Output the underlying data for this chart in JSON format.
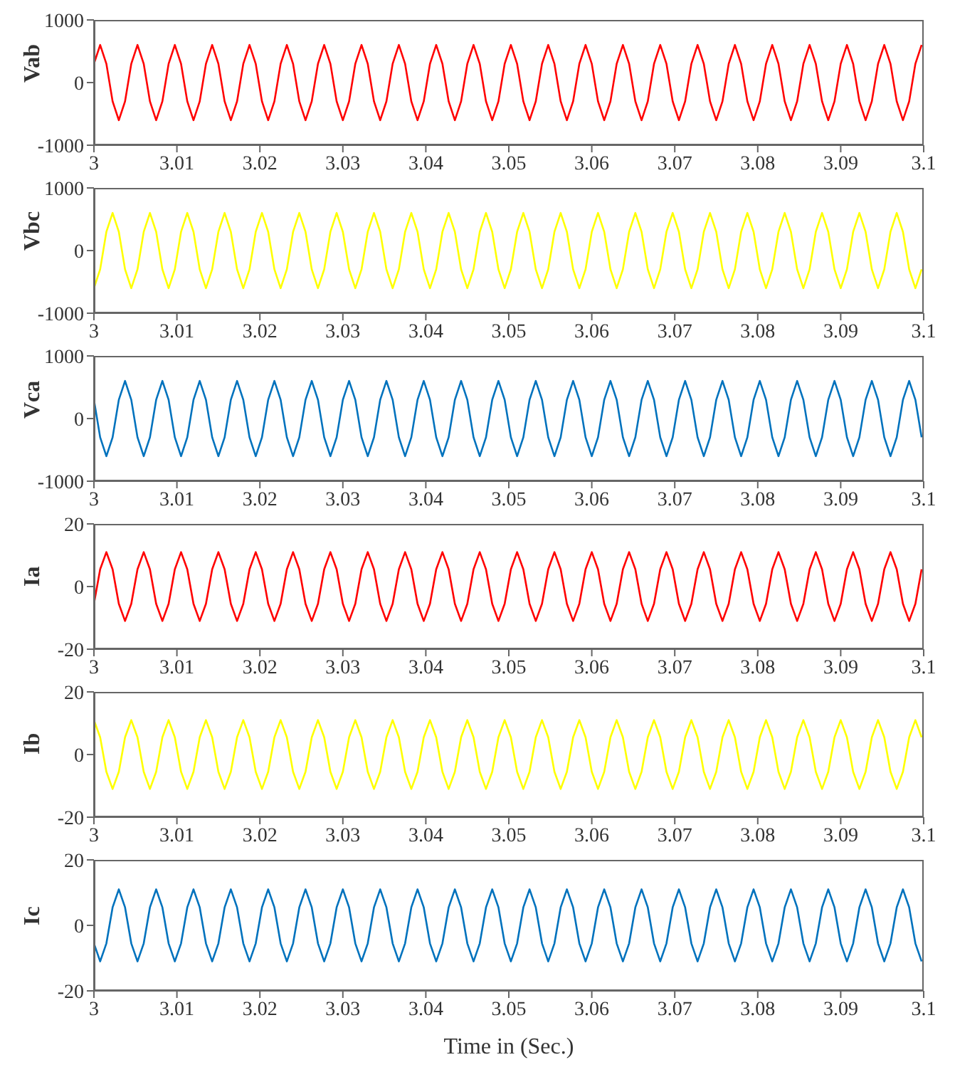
{
  "chart_data": [
    {
      "type": "line",
      "ylabel": "Vab",
      "xlim": [
        3,
        3.1
      ],
      "xticks": [
        3,
        3.01,
        3.02,
        3.03,
        3.04,
        3.05,
        3.06,
        3.07,
        3.08,
        3.09,
        3.1
      ],
      "ylim": [
        -1000,
        1000
      ],
      "yticks": [
        -1000,
        0,
        1000
      ],
      "x": [
        3,
        3.00075,
        3.0015,
        3.00225,
        3.003,
        3.00375,
        3.0045,
        3.00525,
        3.006,
        3.00675,
        3.0075,
        3.00825,
        3.009,
        3.00975,
        3.0105,
        3.01125,
        3.012,
        3.01275,
        3.0135,
        3.01425,
        3.015,
        3.01575,
        3.0165,
        3.01725,
        3.018,
        3.01875,
        3.0195,
        3.02025,
        3.021,
        3.02175,
        3.0225,
        3.02325,
        3.024,
        3.02475,
        3.0255,
        3.02625,
        3.027,
        3.02775,
        3.0285,
        3.02925,
        3.03,
        3.03075,
        3.0315,
        3.03225,
        3.033,
        3.03375,
        3.0345,
        3.03525,
        3.036,
        3.03675,
        3.0375,
        3.03825,
        3.039,
        3.03975,
        3.0405,
        3.04125,
        3.042,
        3.04275,
        3.0435,
        3.04425,
        3.045,
        3.04575,
        3.0465,
        3.04725,
        3.048,
        3.04875,
        3.0495,
        3.05025,
        3.051,
        3.05175,
        3.0525,
        3.05325,
        3.054,
        3.05475,
        3.0555,
        3.05625,
        3.057,
        3.05775,
        3.0585,
        3.05925,
        3.06,
        3.06075,
        3.0615,
        3.06225,
        3.063,
        3.06375,
        3.0645,
        3.06525,
        3.066,
        3.06675,
        3.0675,
        3.06825,
        3.069,
        3.06975,
        3.0705,
        3.07125,
        3.072,
        3.07275,
        3.0735,
        3.07425,
        3.075,
        3.07575,
        3.0765,
        3.07725,
        3.078,
        3.07875,
        3.0795,
        3.08025,
        3.081,
        3.08175,
        3.0825,
        3.08325,
        3.084,
        3.08475,
        3.0855,
        3.08625,
        3.087,
        3.08775,
        3.0885,
        3.08925,
        3.09,
        3.09075,
        3.0915,
        3.09225,
        3.093,
        3.09375,
        3.0945,
        3.09525,
        3.096,
        3.09675,
        3.0975,
        3.09825,
        3.099,
        3.09975
      ],
      "series": [
        {
          "color": "#ff0000",
          "values": [
            300,
            600,
            300,
            -300,
            -600,
            -300,
            300,
            600,
            300,
            -300,
            -600,
            -300,
            300,
            600,
            300,
            -300,
            -600,
            -300,
            300,
            600,
            300,
            -300,
            -600,
            -300,
            300,
            600,
            300,
            -300,
            -600,
            -300,
            300,
            600,
            300,
            -300,
            -600,
            -300,
            300,
            600,
            300,
            -300,
            -600,
            -300,
            300,
            600,
            300,
            -300,
            -600,
            -300,
            300,
            600,
            300,
            -300,
            -600,
            -300,
            300,
            600,
            300,
            -300,
            -600,
            -300,
            300,
            600,
            300,
            -300,
            -600,
            -300,
            300,
            600,
            300,
            -300,
            -600,
            -300,
            300,
            600,
            300,
            -300,
            -600,
            -300,
            300,
            600,
            300,
            -300,
            -600,
            -300,
            300,
            600,
            300,
            -300,
            -600,
            -300,
            300,
            600,
            300,
            -300,
            -600,
            -300,
            300,
            600,
            300,
            -300,
            -600,
            -300,
            300,
            600,
            300,
            -300,
            -600,
            -300,
            300,
            600,
            300,
            -300,
            -600,
            -300,
            300,
            600,
            300,
            -300,
            -600,
            -300,
            300,
            600,
            300,
            -300,
            -600,
            -300,
            300,
            600,
            300,
            -300,
            -600,
            -300,
            300,
            600
          ]
        }
      ]
    },
    {
      "type": "line",
      "ylabel": "Vbc",
      "xlim": [
        3,
        3.1
      ],
      "xticks": [
        3,
        3.01,
        3.02,
        3.03,
        3.04,
        3.05,
        3.06,
        3.07,
        3.08,
        3.09,
        3.1
      ],
      "ylim": [
        -1000,
        1000
      ],
      "yticks": [
        -1000,
        0,
        1000
      ],
      "x": [
        3,
        3.00075,
        3.0015,
        3.00225,
        3.003,
        3.00375,
        3.0045,
        3.00525,
        3.006,
        3.00675,
        3.0075,
        3.00825,
        3.009,
        3.00975,
        3.0105,
        3.01125,
        3.012,
        3.01275,
        3.0135,
        3.01425,
        3.015,
        3.01575,
        3.0165,
        3.01725,
        3.018,
        3.01875,
        3.0195,
        3.02025,
        3.021,
        3.02175,
        3.0225,
        3.02325,
        3.024,
        3.02475,
        3.0255,
        3.02625,
        3.027,
        3.02775,
        3.0285,
        3.02925,
        3.03,
        3.03075,
        3.0315,
        3.03225,
        3.033,
        3.03375,
        3.0345,
        3.03525,
        3.036,
        3.03675,
        3.0375,
        3.03825,
        3.039,
        3.03975,
        3.0405,
        3.04125,
        3.042,
        3.04275,
        3.0435,
        3.04425,
        3.045,
        3.04575,
        3.0465,
        3.04725,
        3.048,
        3.04875,
        3.0495,
        3.05025,
        3.051,
        3.05175,
        3.0525,
        3.05325,
        3.054,
        3.05475,
        3.0555,
        3.05625,
        3.057,
        3.05775,
        3.0585,
        3.05925,
        3.06,
        3.06075,
        3.0615,
        3.06225,
        3.063,
        3.06375,
        3.0645,
        3.06525,
        3.066,
        3.06675,
        3.0675,
        3.06825,
        3.069,
        3.06975,
        3.0705,
        3.07125,
        3.072,
        3.07275,
        3.0735,
        3.07425,
        3.075,
        3.07575,
        3.0765,
        3.07725,
        3.078,
        3.07875,
        3.0795,
        3.08025,
        3.081,
        3.08175,
        3.0825,
        3.08325,
        3.084,
        3.08475,
        3.0855,
        3.08625,
        3.087,
        3.08775,
        3.0885,
        3.08925,
        3.09,
        3.09075,
        3.0915,
        3.09225,
        3.093,
        3.09375,
        3.0945,
        3.09525,
        3.096,
        3.09675,
        3.0975,
        3.09825,
        3.099,
        3.09975
      ],
      "series": [
        {
          "color": "#ffff00",
          "values": [
            -600,
            -300,
            300,
            600,
            300,
            -300,
            -600,
            -300,
            300,
            600,
            300,
            -300,
            -600,
            -300,
            300,
            600,
            300,
            -300,
            -600,
            -300,
            300,
            600,
            300,
            -300,
            -600,
            -300,
            300,
            600,
            300,
            -300,
            -600,
            -300,
            300,
            600,
            300,
            -300,
            -600,
            -300,
            300,
            600,
            300,
            -300,
            -600,
            -300,
            300,
            600,
            300,
            -300,
            -600,
            -300,
            300,
            600,
            300,
            -300,
            -600,
            -300,
            300,
            600,
            300,
            -300,
            -600,
            -300,
            300,
            600,
            300,
            -300,
            -600,
            -300,
            300,
            600,
            300,
            -300,
            -600,
            -300,
            300,
            600,
            300,
            -300,
            -600,
            -300,
            300,
            600,
            300,
            -300,
            -600,
            -300,
            300,
            600,
            300,
            -300,
            -600,
            -300,
            300,
            600,
            300,
            -300,
            -600,
            -300,
            300,
            600,
            300,
            -300,
            -600,
            -300,
            300,
            600,
            300,
            -300,
            -600,
            -300,
            300,
            600,
            300,
            -300,
            -600,
            -300,
            300,
            600,
            300,
            -300,
            -600,
            -300,
            300,
            600,
            300,
            -300,
            -600,
            -300,
            300,
            600,
            300,
            -300,
            -600,
            -300
          ]
        }
      ]
    },
    {
      "type": "line",
      "ylabel": "Vca",
      "xlim": [
        3,
        3.1
      ],
      "xticks": [
        3,
        3.01,
        3.02,
        3.03,
        3.04,
        3.05,
        3.06,
        3.07,
        3.08,
        3.09,
        3.1
      ],
      "ylim": [
        -1000,
        1000
      ],
      "yticks": [
        -1000,
        0,
        1000
      ],
      "x": [
        3,
        3.00075,
        3.0015,
        3.00225,
        3.003,
        3.00375,
        3.0045,
        3.00525,
        3.006,
        3.00675,
        3.0075,
        3.00825,
        3.009,
        3.00975,
        3.0105,
        3.01125,
        3.012,
        3.01275,
        3.0135,
        3.01425,
        3.015,
        3.01575,
        3.0165,
        3.01725,
        3.018,
        3.01875,
        3.0195,
        3.02025,
        3.021,
        3.02175,
        3.0225,
        3.02325,
        3.024,
        3.02475,
        3.0255,
        3.02625,
        3.027,
        3.02775,
        3.0285,
        3.02925,
        3.03,
        3.03075,
        3.0315,
        3.03225,
        3.033,
        3.03375,
        3.0345,
        3.03525,
        3.036,
        3.03675,
        3.0375,
        3.03825,
        3.039,
        3.03975,
        3.0405,
        3.04125,
        3.042,
        3.04275,
        3.0435,
        3.04425,
        3.045,
        3.04575,
        3.0465,
        3.04725,
        3.048,
        3.04875,
        3.0495,
        3.05025,
        3.051,
        3.05175,
        3.0525,
        3.05325,
        3.054,
        3.05475,
        3.0555,
        3.05625,
        3.057,
        3.05775,
        3.0585,
        3.05925,
        3.06,
        3.06075,
        3.0615,
        3.06225,
        3.063,
        3.06375,
        3.0645,
        3.06525,
        3.066,
        3.06675,
        3.0675,
        3.06825,
        3.069,
        3.06975,
        3.0705,
        3.07125,
        3.072,
        3.07275,
        3.0735,
        3.07425,
        3.075,
        3.07575,
        3.0765,
        3.07725,
        3.078,
        3.07875,
        3.0795,
        3.08025,
        3.081,
        3.08175,
        3.0825,
        3.08325,
        3.084,
        3.08475,
        3.0855,
        3.08625,
        3.087,
        3.08775,
        3.0885,
        3.08925,
        3.09,
        3.09075,
        3.0915,
        3.09225,
        3.093,
        3.09375,
        3.0945,
        3.09525,
        3.096,
        3.09675,
        3.0975,
        3.09825,
        3.099,
        3.09975
      ],
      "series": [
        {
          "color": "#0072bd",
          "values": [
            300,
            -300,
            -600,
            -300,
            300,
            600,
            300,
            -300,
            -600,
            -300,
            300,
            600,
            300,
            -300,
            -600,
            -300,
            300,
            600,
            300,
            -300,
            -600,
            -300,
            300,
            600,
            300,
            -300,
            -600,
            -300,
            300,
            600,
            300,
            -300,
            -600,
            -300,
            300,
            600,
            300,
            -300,
            -600,
            -300,
            300,
            600,
            300,
            -300,
            -600,
            -300,
            300,
            600,
            300,
            -300,
            -600,
            -300,
            300,
            600,
            300,
            -300,
            -600,
            -300,
            300,
            600,
            300,
            -300,
            -600,
            -300,
            300,
            600,
            300,
            -300,
            -600,
            -300,
            300,
            600,
            300,
            -300,
            -600,
            -300,
            300,
            600,
            300,
            -300,
            -600,
            -300,
            300,
            600,
            300,
            -300,
            -600,
            -300,
            300,
            600,
            300,
            -300,
            -600,
            -300,
            300,
            600,
            300,
            -300,
            -600,
            -300,
            300,
            600,
            300,
            -300,
            -600,
            -300,
            300,
            600,
            300,
            -300,
            -600,
            -300,
            300,
            600,
            300,
            -300,
            -600,
            -300,
            300,
            600,
            300,
            -300,
            -600,
            -300,
            300,
            600,
            300,
            -300,
            -600,
            -300,
            300,
            600,
            300,
            -300
          ]
        }
      ]
    },
    {
      "type": "line",
      "ylabel": "Ia",
      "xlim": [
        3,
        3.1
      ],
      "xticks": [
        3,
        3.01,
        3.02,
        3.03,
        3.04,
        3.05,
        3.06,
        3.07,
        3.08,
        3.09,
        3.1
      ],
      "ylim": [
        -20,
        20
      ],
      "yticks": [
        -20,
        0,
        20
      ],
      "x": [
        3,
        3.00075,
        3.0015,
        3.00225,
        3.003,
        3.00375,
        3.0045,
        3.00525,
        3.006,
        3.00675,
        3.0075,
        3.00825,
        3.009,
        3.00975,
        3.0105,
        3.01125,
        3.012,
        3.01275,
        3.0135,
        3.01425,
        3.015,
        3.01575,
        3.0165,
        3.01725,
        3.018,
        3.01875,
        3.0195,
        3.02025,
        3.021,
        3.02175,
        3.0225,
        3.02325,
        3.024,
        3.02475,
        3.0255,
        3.02625,
        3.027,
        3.02775,
        3.0285,
        3.02925,
        3.03,
        3.03075,
        3.0315,
        3.03225,
        3.033,
        3.03375,
        3.0345,
        3.03525,
        3.036,
        3.03675,
        3.0375,
        3.03825,
        3.039,
        3.03975,
        3.0405,
        3.04125,
        3.042,
        3.04275,
        3.0435,
        3.04425,
        3.045,
        3.04575,
        3.0465,
        3.04725,
        3.048,
        3.04875,
        3.0495,
        3.05025,
        3.051,
        3.05175,
        3.0525,
        3.05325,
        3.054,
        3.05475,
        3.0555,
        3.05625,
        3.057,
        3.05775,
        3.0585,
        3.05925,
        3.06,
        3.06075,
        3.0615,
        3.06225,
        3.063,
        3.06375,
        3.0645,
        3.06525,
        3.066,
        3.06675,
        3.0675,
        3.06825,
        3.069,
        3.06975,
        3.0705,
        3.07125,
        3.072,
        3.07275,
        3.0735,
        3.07425,
        3.075,
        3.07575,
        3.0765,
        3.07725,
        3.078,
        3.07875,
        3.0795,
        3.08025,
        3.081,
        3.08175,
        3.0825,
        3.08325,
        3.084,
        3.08475,
        3.0855,
        3.08625,
        3.087,
        3.08775,
        3.0885,
        3.08925,
        3.09,
        3.09075,
        3.0915,
        3.09225,
        3.093,
        3.09375,
        3.0945,
        3.09525,
        3.096,
        3.09675,
        3.0975,
        3.09825,
        3.099,
        3.09975
      ],
      "series": [
        {
          "color": "#ff0000",
          "values": [
            -5.5,
            5.5,
            11,
            5.5,
            -5.5,
            -11,
            -5.5,
            5.5,
            11,
            5.5,
            -5.5,
            -11,
            -5.5,
            5.5,
            11,
            5.5,
            -5.5,
            -11,
            -5.5,
            5.5,
            11,
            5.5,
            -5.5,
            -11,
            -5.5,
            5.5,
            11,
            5.5,
            -5.5,
            -11,
            -5.5,
            5.5,
            11,
            5.5,
            -5.5,
            -11,
            -5.5,
            5.5,
            11,
            5.5,
            -5.5,
            -11,
            -5.5,
            5.5,
            11,
            5.5,
            -5.5,
            -11,
            -5.5,
            5.5,
            11,
            5.5,
            -5.5,
            -11,
            -5.5,
            5.5,
            11,
            5.5,
            -5.5,
            -11,
            -5.5,
            5.5,
            11,
            5.5,
            -5.5,
            -11,
            -5.5,
            5.5,
            11,
            5.5,
            -5.5,
            -11,
            -5.5,
            5.5,
            11,
            5.5,
            -5.5,
            -11,
            -5.5,
            5.5,
            11,
            5.5,
            -5.5,
            -11,
            -5.5,
            5.5,
            11,
            5.5,
            -5.5,
            -11,
            -5.5,
            5.5,
            11,
            5.5,
            -5.5,
            -11,
            -5.5,
            5.5,
            11,
            5.5,
            -5.5,
            -11,
            -5.5,
            5.5,
            11,
            5.5,
            -5.5,
            -11,
            -5.5,
            5.5,
            11,
            5.5,
            -5.5,
            -11,
            -5.5,
            5.5,
            11,
            5.5,
            -5.5,
            -11,
            -5.5,
            5.5,
            11,
            5.5,
            -5.5,
            -11,
            -5.5,
            5.5,
            11,
            5.5,
            -5.5,
            -11,
            -5.5,
            5.5
          ]
        }
      ]
    },
    {
      "type": "line",
      "ylabel": "Ib",
      "xlim": [
        3,
        3.1
      ],
      "xticks": [
        3,
        3.01,
        3.02,
        3.03,
        3.04,
        3.05,
        3.06,
        3.07,
        3.08,
        3.09,
        3.1
      ],
      "ylim": [
        -20,
        20
      ],
      "yticks": [
        -20,
        0,
        20
      ],
      "x": [
        3,
        3.00075,
        3.0015,
        3.00225,
        3.003,
        3.00375,
        3.0045,
        3.00525,
        3.006,
        3.00675,
        3.0075,
        3.00825,
        3.009,
        3.00975,
        3.0105,
        3.01125,
        3.012,
        3.01275,
        3.0135,
        3.01425,
        3.015,
        3.01575,
        3.0165,
        3.01725,
        3.018,
        3.01875,
        3.0195,
        3.02025,
        3.021,
        3.02175,
        3.0225,
        3.02325,
        3.024,
        3.02475,
        3.0255,
        3.02625,
        3.027,
        3.02775,
        3.0285,
        3.02925,
        3.03,
        3.03075,
        3.0315,
        3.03225,
        3.033,
        3.03375,
        3.0345,
        3.03525,
        3.036,
        3.03675,
        3.0375,
        3.03825,
        3.039,
        3.03975,
        3.0405,
        3.04125,
        3.042,
        3.04275,
        3.0435,
        3.04425,
        3.045,
        3.04575,
        3.0465,
        3.04725,
        3.048,
        3.04875,
        3.0495,
        3.05025,
        3.051,
        3.05175,
        3.0525,
        3.05325,
        3.054,
        3.05475,
        3.0555,
        3.05625,
        3.057,
        3.05775,
        3.0585,
        3.05925,
        3.06,
        3.06075,
        3.0615,
        3.06225,
        3.063,
        3.06375,
        3.0645,
        3.06525,
        3.066,
        3.06675,
        3.0675,
        3.06825,
        3.069,
        3.06975,
        3.0705,
        3.07125,
        3.072,
        3.07275,
        3.0735,
        3.07425,
        3.075,
        3.07575,
        3.0765,
        3.07725,
        3.078,
        3.07875,
        3.0795,
        3.08025,
        3.081,
        3.08175,
        3.0825,
        3.08325,
        3.084,
        3.08475,
        3.0855,
        3.08625,
        3.087,
        3.08775,
        3.0885,
        3.08925,
        3.09,
        3.09075,
        3.0915,
        3.09225,
        3.093,
        3.09375,
        3.0945,
        3.09525,
        3.096,
        3.09675,
        3.0975,
        3.09825,
        3.099,
        3.09975
      ],
      "series": [
        {
          "color": "#ffff00",
          "values": [
            11,
            5.5,
            -5.5,
            -11,
            -5.5,
            5.5,
            11,
            5.5,
            -5.5,
            -11,
            -5.5,
            5.5,
            11,
            5.5,
            -5.5,
            -11,
            -5.5,
            5.5,
            11,
            5.5,
            -5.5,
            -11,
            -5.5,
            5.5,
            11,
            5.5,
            -5.5,
            -11,
            -5.5,
            5.5,
            11,
            5.5,
            -5.5,
            -11,
            -5.5,
            5.5,
            11,
            5.5,
            -5.5,
            -11,
            -5.5,
            5.5,
            11,
            5.5,
            -5.5,
            -11,
            -5.5,
            5.5,
            11,
            5.5,
            -5.5,
            -11,
            -5.5,
            5.5,
            11,
            5.5,
            -5.5,
            -11,
            -5.5,
            5.5,
            11,
            5.5,
            -5.5,
            -11,
            -5.5,
            5.5,
            11,
            5.5,
            -5.5,
            -11,
            -5.5,
            5.5,
            11,
            5.5,
            -5.5,
            -11,
            -5.5,
            5.5,
            11,
            5.5,
            -5.5,
            -11,
            -5.5,
            5.5,
            11,
            5.5,
            -5.5,
            -11,
            -5.5,
            5.5,
            11,
            5.5,
            -5.5,
            -11,
            -5.5,
            5.5,
            11,
            5.5,
            -5.5,
            -11,
            -5.5,
            5.5,
            11,
            5.5,
            -5.5,
            -11,
            -5.5,
            5.5,
            11,
            5.5,
            -5.5,
            -11,
            -5.5,
            5.5,
            11,
            5.5,
            -5.5,
            -11,
            -5.5,
            5.5,
            11,
            5.5,
            -5.5,
            -11,
            -5.5,
            5.5,
            11,
            5.5,
            -5.5,
            -11,
            -5.5,
            5.5,
            11,
            5.5
          ]
        }
      ]
    },
    {
      "type": "line",
      "ylabel": "Ic",
      "xlabel": "Time in (Sec.)",
      "xlim": [
        3,
        3.1
      ],
      "xticks": [
        3,
        3.01,
        3.02,
        3.03,
        3.04,
        3.05,
        3.06,
        3.07,
        3.08,
        3.09,
        3.1
      ],
      "ylim": [
        -20,
        20
      ],
      "yticks": [
        -20,
        0,
        20
      ],
      "x": [
        3,
        3.00075,
        3.0015,
        3.00225,
        3.003,
        3.00375,
        3.0045,
        3.00525,
        3.006,
        3.00675,
        3.0075,
        3.00825,
        3.009,
        3.00975,
        3.0105,
        3.01125,
        3.012,
        3.01275,
        3.0135,
        3.01425,
        3.015,
        3.01575,
        3.0165,
        3.01725,
        3.018,
        3.01875,
        3.0195,
        3.02025,
        3.021,
        3.02175,
        3.0225,
        3.02325,
        3.024,
        3.02475,
        3.0255,
        3.02625,
        3.027,
        3.02775,
        3.0285,
        3.02925,
        3.03,
        3.03075,
        3.0315,
        3.03225,
        3.033,
        3.03375,
        3.0345,
        3.03525,
        3.036,
        3.03675,
        3.0375,
        3.03825,
        3.039,
        3.03975,
        3.0405,
        3.04125,
        3.042,
        3.04275,
        3.0435,
        3.04425,
        3.045,
        3.04575,
        3.0465,
        3.04725,
        3.048,
        3.04875,
        3.0495,
        3.05025,
        3.051,
        3.05175,
        3.0525,
        3.05325,
        3.054,
        3.05475,
        3.0555,
        3.05625,
        3.057,
        3.05775,
        3.0585,
        3.05925,
        3.06,
        3.06075,
        3.0615,
        3.06225,
        3.063,
        3.06375,
        3.0645,
        3.06525,
        3.066,
        3.06675,
        3.0675,
        3.06825,
        3.069,
        3.06975,
        3.0705,
        3.07125,
        3.072,
        3.07275,
        3.0735,
        3.07425,
        3.075,
        3.07575,
        3.0765,
        3.07725,
        3.078,
        3.07875,
        3.0795,
        3.08025,
        3.081,
        3.08175,
        3.0825,
        3.08325,
        3.084,
        3.08475,
        3.0855,
        3.08625,
        3.087,
        3.08775,
        3.0885,
        3.08925,
        3.09,
        3.09075,
        3.0915,
        3.09225,
        3.093,
        3.09375,
        3.0945,
        3.09525,
        3.096,
        3.09675,
        3.0975,
        3.09825,
        3.099,
        3.09975
      ],
      "series": [
        {
          "color": "#0072bd",
          "values": [
            -5.5,
            -11,
            -5.5,
            5.5,
            11,
            5.5,
            -5.5,
            -11,
            -5.5,
            5.5,
            11,
            5.5,
            -5.5,
            -11,
            -5.5,
            5.5,
            11,
            5.5,
            -5.5,
            -11,
            -5.5,
            5.5,
            11,
            5.5,
            -5.5,
            -11,
            -5.5,
            5.5,
            11,
            5.5,
            -5.5,
            -11,
            -5.5,
            5.5,
            11,
            5.5,
            -5.5,
            -11,
            -5.5,
            5.5,
            11,
            5.5,
            -5.5,
            -11,
            -5.5,
            5.5,
            11,
            5.5,
            -5.5,
            -11,
            -5.5,
            5.5,
            11,
            5.5,
            -5.5,
            -11,
            -5.5,
            5.5,
            11,
            5.5,
            -5.5,
            -11,
            -5.5,
            5.5,
            11,
            5.5,
            -5.5,
            -11,
            -5.5,
            5.5,
            11,
            5.5,
            -5.5,
            -11,
            -5.5,
            5.5,
            11,
            5.5,
            -5.5,
            -11,
            -5.5,
            5.5,
            11,
            5.5,
            -5.5,
            -11,
            -5.5,
            5.5,
            11,
            5.5,
            -5.5,
            -11,
            -5.5,
            5.5,
            11,
            5.5,
            -5.5,
            -11,
            -5.5,
            5.5,
            11,
            5.5,
            -5.5,
            -11,
            -5.5,
            5.5,
            11,
            5.5,
            -5.5,
            -11,
            -5.5,
            5.5,
            11,
            5.5,
            -5.5,
            -11,
            -5.5,
            5.5,
            11,
            5.5,
            -5.5,
            -11,
            -5.5,
            5.5,
            11,
            5.5,
            -5.5,
            -11,
            -5.5,
            5.5,
            11,
            5.5,
            -5.5,
            -11
          ]
        }
      ]
    }
  ]
}
